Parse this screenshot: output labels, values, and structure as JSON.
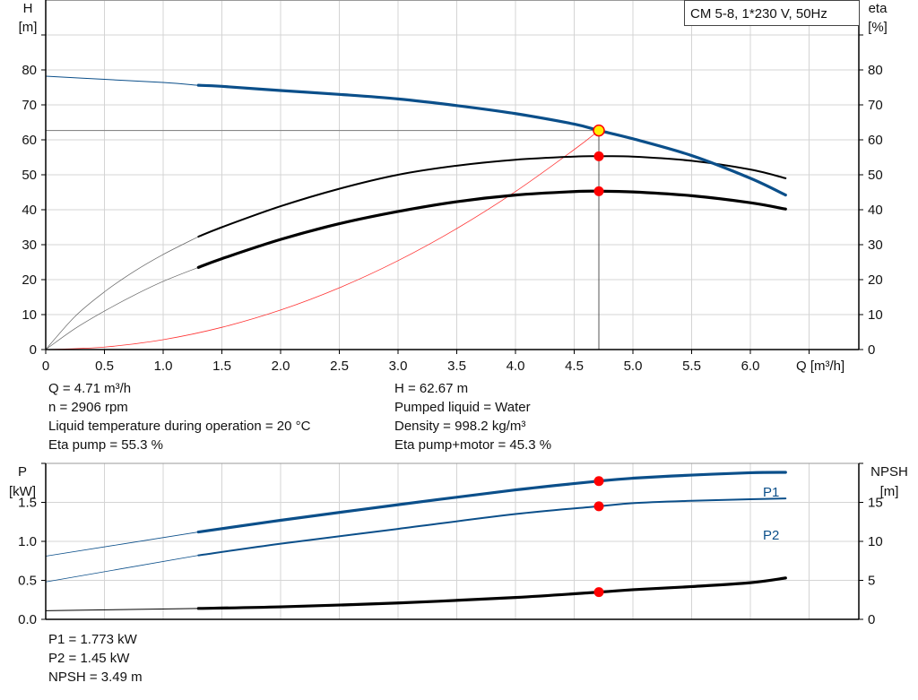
{
  "chart_data": [
    {
      "type": "line",
      "title": "CM 5-8, 1*230 V, 50Hz",
      "xlabel": "Q [m³/h]",
      "ylabel": [
        "H",
        "[m]"
      ],
      "y2label": [
        "eta",
        "[%]"
      ],
      "xlim": [
        0,
        6.9
      ],
      "ylim": [
        0,
        100
      ],
      "y2lim": [
        0,
        100
      ],
      "xticks": [
        "0",
        "0.5",
        "1.0",
        "1.5",
        "2.0",
        "2.5",
        "3.0",
        "3.5",
        "4.0",
        "4.5",
        "5.0",
        "5.5",
        "6.0"
      ],
      "yticks": [
        "0",
        "10",
        "20",
        "30",
        "40",
        "50",
        "60",
        "70",
        "80"
      ],
      "y2ticks": [
        "0",
        "10",
        "20",
        "30",
        "40",
        "50",
        "60",
        "70",
        "80"
      ],
      "grid": true,
      "series": [
        {
          "key": "H",
          "axis": "left",
          "color": "#0b4f8a",
          "x": [
            0,
            0.5,
            1.0,
            1.3,
            1.5,
            2.0,
            2.5,
            3.0,
            3.5,
            4.0,
            4.5,
            4.71,
            5.0,
            5.5,
            6.0,
            6.3
          ],
          "y": [
            78.2,
            77.3,
            76.4,
            75.6,
            75.3,
            74.1,
            73.0,
            71.7,
            69.8,
            67.5,
            64.5,
            62.67,
            60.3,
            55.5,
            49.0,
            44.2
          ]
        },
        {
          "key": "eta_pump",
          "axis": "right",
          "color": "#000000",
          "x": [
            0,
            0.25,
            0.5,
            0.75,
            1.0,
            1.3,
            1.5,
            2.0,
            2.5,
            3.0,
            3.5,
            4.0,
            4.5,
            4.71,
            5.0,
            5.5,
            6.0,
            6.3
          ],
          "y": [
            0,
            9.5,
            16.5,
            22.3,
            27.2,
            32.3,
            35.0,
            41.0,
            46.0,
            50.0,
            52.6,
            54.3,
            55.2,
            55.3,
            55.2,
            54.0,
            51.5,
            49.0
          ]
        },
        {
          "key": "eta_pump_motor",
          "axis": "right",
          "color": "#000000",
          "x": [
            0,
            0.25,
            0.5,
            0.75,
            1.0,
            1.3,
            1.5,
            2.0,
            2.5,
            3.0,
            3.5,
            4.0,
            4.5,
            4.71,
            5.0,
            5.5,
            6.0,
            6.3
          ],
          "y": [
            0,
            6.0,
            11.0,
            15.5,
            19.5,
            23.5,
            26.0,
            31.5,
            36.0,
            39.5,
            42.3,
            44.2,
            45.2,
            45.3,
            45.1,
            44.0,
            42.0,
            40.2
          ]
        },
        {
          "key": "system_curve",
          "axis": "left",
          "color": "#ff3333",
          "x": [
            0,
            0.5,
            1.0,
            1.5,
            2.0,
            2.5,
            3.0,
            3.5,
            4.0,
            4.5,
            4.71
          ],
          "y": [
            0,
            0.71,
            2.83,
            6.36,
            11.3,
            17.66,
            25.43,
            34.61,
            45.2,
            57.21,
            62.67
          ]
        }
      ],
      "duty_point": {
        "Q": 4.71,
        "H": 62.67,
        "eta_pump": 55.3,
        "eta_pump_motor": 45.3
      }
    },
    {
      "type": "line",
      "ylabel": [
        "P",
        "[kW]"
      ],
      "y2label": [
        "NPSH",
        "[m]"
      ],
      "xlim": [
        0,
        6.9
      ],
      "ylim": [
        0,
        2.0
      ],
      "y2lim": [
        0,
        20
      ],
      "yticks": [
        "0.0",
        "0.5",
        "1.0",
        "1.5"
      ],
      "y2ticks": [
        "0",
        "5",
        "10",
        "15"
      ],
      "grid": true,
      "series": [
        {
          "name": "P1",
          "key": "P1",
          "axis": "left",
          "color": "#0b4f8a",
          "x": [
            0,
            1.3,
            2.0,
            3.0,
            4.0,
            4.71,
            5.0,
            5.5,
            6.0,
            6.3
          ],
          "y": [
            0.81,
            1.12,
            1.27,
            1.47,
            1.66,
            1.773,
            1.81,
            1.85,
            1.88,
            1.885
          ]
        },
        {
          "name": "P2",
          "key": "P2",
          "axis": "left",
          "color": "#0b4f8a",
          "x": [
            0,
            1.3,
            2.0,
            3.0,
            4.0,
            4.71,
            5.0,
            5.5,
            6.0,
            6.3
          ],
          "y": [
            0.48,
            0.82,
            0.97,
            1.16,
            1.35,
            1.45,
            1.49,
            1.52,
            1.54,
            1.55
          ]
        },
        {
          "key": "NPSH",
          "axis": "right",
          "color": "#000000",
          "x": [
            0,
            1.3,
            2.0,
            3.0,
            4.0,
            4.71,
            5.0,
            5.5,
            6.0,
            6.3
          ],
          "y": [
            1.1,
            1.4,
            1.6,
            2.1,
            2.8,
            3.49,
            3.8,
            4.2,
            4.7,
            5.3
          ]
        }
      ],
      "duty_point": {
        "Q": 4.71,
        "P1": 1.773,
        "P2": 1.45,
        "NPSH": 3.49
      }
    }
  ],
  "info_top": {
    "left": [
      "Q = 4.71 m³/h",
      "n = 2906 rpm",
      "Liquid temperature during operation = 20 °C",
      "Eta pump = 55.3 %"
    ],
    "right": [
      "H = 62.67 m",
      "Pumped liquid = Water",
      "Density = 998.2 kg/m³",
      "Eta pump+motor = 45.3 %"
    ]
  },
  "info_bottom": [
    "P1 = 1.773 kW",
    "P2 = 1.45 kW",
    "NPSH = 3.49 m"
  ]
}
